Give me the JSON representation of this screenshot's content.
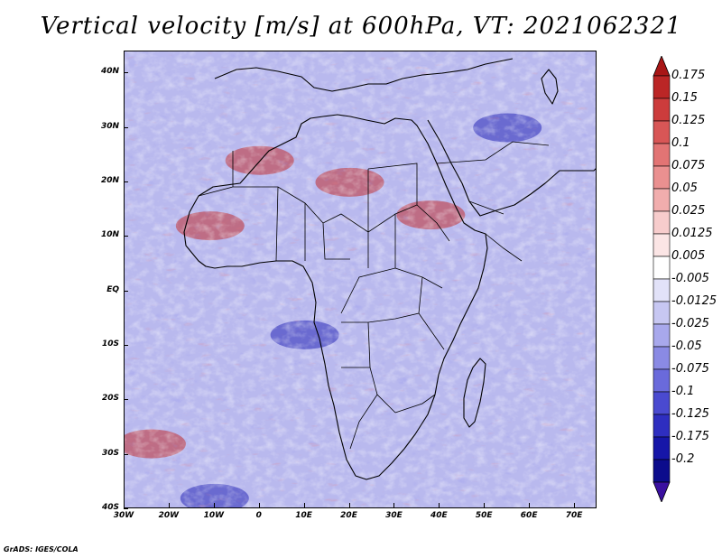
{
  "title": "Vertical velocity [m/s] at 600hPa, VT: 2021062321",
  "credit": "GrADS: IGES/COLA",
  "lat_labels": [
    "40N",
    "30N",
    "20N",
    "10N",
    "EQ",
    "10S",
    "20S",
    "30S",
    "40S"
  ],
  "lat_values": [
    40,
    30,
    20,
    10,
    0,
    -10,
    -20,
    -30,
    -40
  ],
  "lon_labels": [
    "30W",
    "20W",
    "10W",
    "0",
    "10E",
    "20E",
    "30E",
    "40E",
    "50E",
    "60E",
    "70E"
  ],
  "lon_values": [
    -30,
    -20,
    -10,
    0,
    10,
    20,
    30,
    40,
    50,
    60,
    70
  ],
  "colorbar": {
    "labels": [
      "0.175",
      "0.15",
      "0.125",
      "0.1",
      "0.075",
      "0.05",
      "0.025",
      "0.0125",
      "0.005",
      "-0.005",
      "-0.0125",
      "-0.025",
      "-0.05",
      "-0.075",
      "-0.1",
      "-0.125",
      "-0.175",
      "-0.2"
    ],
    "colors": [
      "#a81616",
      "#bb2626",
      "#cc3c3c",
      "#d85656",
      "#e27474",
      "#ea9090",
      "#f1adad",
      "#f7cccc",
      "#fbe5e5",
      "#ffffff",
      "#e2e2f8",
      "#c7c7f2",
      "#a8a8ec",
      "#8a8ae4",
      "#6a6adb",
      "#4a4ad0",
      "#2e2ec0",
      "#1616a8",
      "#0c0c8c",
      "#3a10a0"
    ]
  },
  "map": {
    "lon_range": [
      -30,
      75
    ],
    "lat_range": [
      -40,
      44
    ],
    "highlights": [
      {
        "lon": -24,
        "lat": -28,
        "sign": "up"
      },
      {
        "lon": -11,
        "lat": 12,
        "sign": "up"
      },
      {
        "lon": 0,
        "lat": 24,
        "sign": "up"
      },
      {
        "lon": 20,
        "lat": 20,
        "sign": "up"
      },
      {
        "lon": 38,
        "lat": 14,
        "sign": "up"
      },
      {
        "lon": -10,
        "lat": -38,
        "sign": "down"
      },
      {
        "lon": 10,
        "lat": -8,
        "sign": "down"
      },
      {
        "lon": 55,
        "lat": 30,
        "sign": "down"
      }
    ]
  }
}
